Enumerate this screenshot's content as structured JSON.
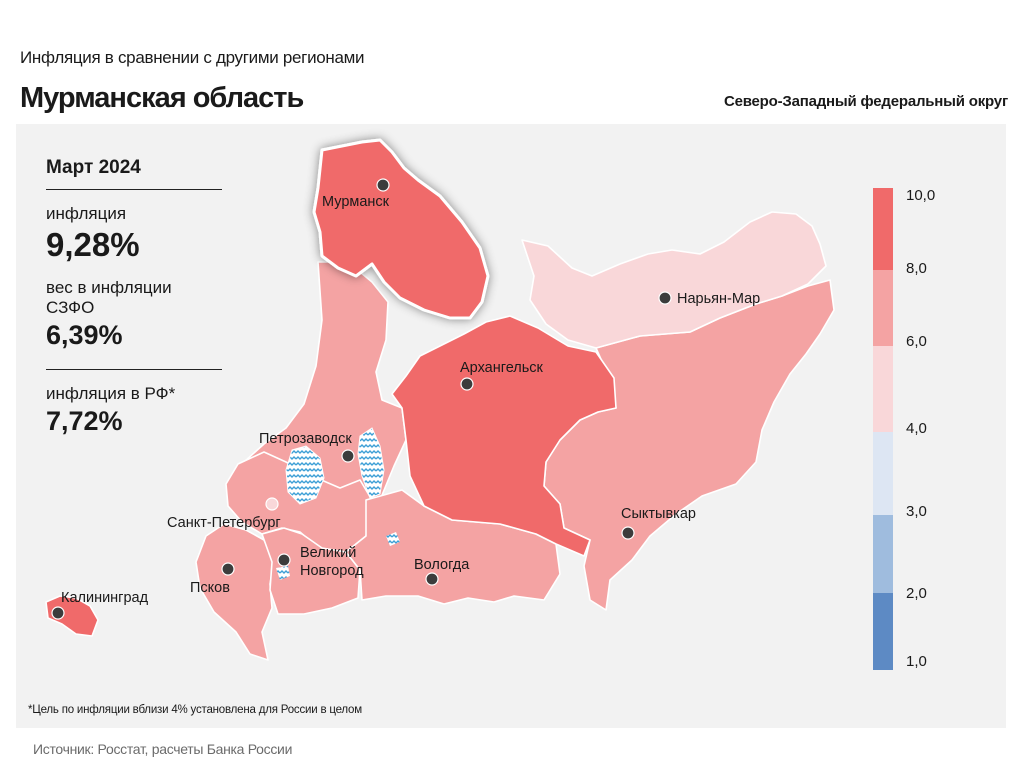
{
  "header": {
    "subtitle": "Инфляция в сравнении с другими регионами",
    "title": "Мурманская область",
    "district": "Северо-Западный федеральный округ"
  },
  "stats": {
    "period": "Март 2024",
    "inflation_label": "инфляция",
    "inflation_value": "9,28%",
    "weight_label": "вес в инфляции СЗФО",
    "weight_value": "6,39%",
    "rf_label": "инфляция в РФ*",
    "rf_value": "7,72%"
  },
  "legend": {
    "ticks": [
      "10,0",
      "8,0",
      "6,0",
      "4,0",
      "3,0",
      "2,0",
      "1,0"
    ],
    "bins": [
      {
        "from": 8.0,
        "to": 10.0,
        "color": "#f06a6a"
      },
      {
        "from": 6.0,
        "to": 8.0,
        "color": "#f4a3a3"
      },
      {
        "from": 4.0,
        "to": 6.0,
        "color": "#f9d7d9"
      },
      {
        "from": 3.0,
        "to": 4.0,
        "color": "#dde6f3"
      },
      {
        "from": 2.0,
        "to": 3.0,
        "color": "#9fbcde"
      },
      {
        "from": 1.0,
        "to": 2.0,
        "color": "#5d8ac4"
      }
    ]
  },
  "map": {
    "cities": {
      "murmansk": "Мурманск",
      "naryan_mar": "Нарьян-Мар",
      "arkhangelsk": "Архангельск",
      "petrozavodsk": "Петрозаводск",
      "saint_petersburg": "Санкт-Петербург",
      "syktyvkar": "Сыктывкар",
      "novgorod_line1": "Великий",
      "novgorod_line2": "Новгород",
      "vologda": "Вологда",
      "pskov": "Псков",
      "kaliningrad": "Калининград"
    },
    "colors": {
      "band_8_10": "#f06a6a",
      "band_6_8": "#f4a3a3",
      "band_4_6": "#f9d7d9",
      "water": "#3d9fd6"
    }
  },
  "footnote": "*Цель по инфляции вблизи 4% установлена для России в целом",
  "source": "Источник: Росстат, расчеты Банка России"
}
